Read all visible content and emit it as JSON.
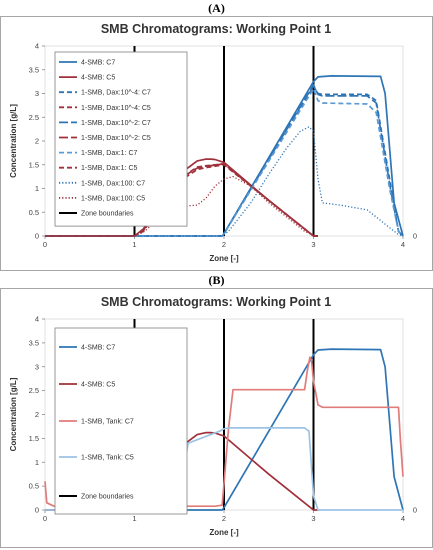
{
  "figure": {
    "label_a": "(A)",
    "label_b": "(B)"
  },
  "chart_data": [
    {
      "type": "line",
      "title": "SMB Chromatograms: Working Point 1",
      "xlabel": "Zone [-]",
      "ylabel": "Concentration [g/L]",
      "xlim": [
        0,
        4
      ],
      "ylim": [
        0,
        4
      ],
      "xticks": [
        "0",
        "1",
        "2",
        "3",
        "4"
      ],
      "yticks": [
        "0",
        "0.5",
        "1",
        "1.5",
        "2",
        "2.5",
        "3",
        "3.5",
        "4"
      ],
      "right_axis_tick": "0",
      "legend_position": "top-left",
      "zone_boundaries": [
        1,
        2,
        3
      ],
      "series": [
        {
          "name": "4-SMB: C7",
          "color": "#2e75b6",
          "style": "solid",
          "x": [
            0,
            1.98,
            2.0,
            3.0,
            3.05,
            3.2,
            3.75,
            3.8,
            3.9,
            4.0
          ],
          "y": [
            0,
            0,
            0.05,
            3.25,
            3.35,
            3.37,
            3.36,
            3.0,
            0.7,
            0
          ]
        },
        {
          "name": "4-SMB: C5",
          "color": "#a0303a",
          "style": "solid",
          "x": [
            0,
            1.0,
            1.1,
            1.3,
            1.5,
            1.7,
            1.8,
            1.85,
            1.9,
            2.0,
            2.5,
            3.0,
            3.05
          ],
          "y": [
            0,
            0,
            0.15,
            0.75,
            1.3,
            1.58,
            1.62,
            1.62,
            1.61,
            1.55,
            0.75,
            0,
            0
          ]
        },
        {
          "name": "1-SMB, Dax:10^-4: C7",
          "color": "#2e75b6",
          "style": "dashed",
          "x": [
            0,
            1.98,
            2.0,
            3.0,
            3.05,
            3.1,
            3.6,
            3.7,
            3.85,
            3.95,
            4.0
          ],
          "y": [
            0,
            0,
            0.05,
            3.15,
            3.0,
            2.98,
            2.98,
            2.85,
            1.2,
            0.1,
            0
          ]
        },
        {
          "name": "1-SMB, Dax:10^-4: C5",
          "color": "#a0303a",
          "style": "dashed",
          "x": [
            0,
            1.0,
            1.1,
            1.3,
            1.5,
            1.7,
            1.8,
            1.9,
            2.0,
            2.5,
            3.0,
            3.05
          ],
          "y": [
            0,
            0,
            0.12,
            0.7,
            1.2,
            1.45,
            1.48,
            1.5,
            1.52,
            0.75,
            0,
            0
          ]
        },
        {
          "name": "1-SMB, Dax:10^-2: C7",
          "color": "#2e75b6",
          "style": "longdash",
          "x": [
            0,
            1.98,
            2.0,
            3.0,
            3.05,
            3.1,
            3.6,
            3.7,
            3.85,
            3.95,
            4.0
          ],
          "y": [
            0,
            0,
            0.05,
            3.18,
            2.98,
            2.95,
            2.95,
            2.8,
            1.1,
            0.1,
            0
          ]
        },
        {
          "name": "1-SMB, Dax:10^-2: C5",
          "color": "#a0303a",
          "style": "longdash",
          "x": [
            0,
            1.0,
            1.1,
            1.3,
            1.5,
            1.7,
            1.8,
            1.9,
            2.0,
            2.5,
            3.0,
            3.05
          ],
          "y": [
            0,
            0,
            0.12,
            0.7,
            1.2,
            1.43,
            1.47,
            1.49,
            1.52,
            0.75,
            0,
            0
          ]
        },
        {
          "name": "1-SMB, Dax:1: C7",
          "color": "#5b9bd5",
          "style": "dashed",
          "x": [
            0,
            1.98,
            2.0,
            3.0,
            3.05,
            3.1,
            3.6,
            3.7,
            3.85,
            3.95,
            4.0
          ],
          "y": [
            0,
            0,
            0.05,
            3.1,
            2.85,
            2.8,
            2.78,
            2.6,
            1.0,
            0.1,
            0
          ]
        },
        {
          "name": "1-SMB, Dax:1: C5",
          "color": "#a0303a",
          "style": "dashed",
          "x": [
            0,
            1.0,
            1.1,
            1.3,
            1.5,
            1.7,
            1.8,
            1.9,
            2.0,
            2.5,
            3.0,
            3.05
          ],
          "y": [
            0,
            0,
            0.1,
            0.65,
            1.15,
            1.4,
            1.44,
            1.47,
            1.5,
            0.75,
            0,
            0
          ]
        },
        {
          "name": "1-SMB, Dax:100: C7",
          "color": "#2e75b6",
          "style": "dotted",
          "x": [
            0,
            1.98,
            2.05,
            2.3,
            2.5,
            2.7,
            2.85,
            2.95,
            3.0,
            3.05,
            3.1,
            3.3,
            3.6,
            3.8,
            3.95,
            4.0
          ],
          "y": [
            0,
            0,
            0.1,
            0.7,
            1.3,
            1.85,
            2.2,
            2.3,
            2.2,
            1.2,
            0.7,
            0.65,
            0.55,
            0.25,
            0.03,
            0
          ]
        },
        {
          "name": "1-SMB, Dax:100: C5",
          "color": "#a0303a",
          "style": "dotted",
          "x": [
            0,
            1.0,
            1.1,
            1.3,
            1.5,
            1.7,
            1.8,
            1.9,
            2.0,
            2.1,
            2.3,
            2.5,
            2.7,
            2.9,
            3.0,
            3.05
          ],
          "y": [
            0,
            0,
            0.08,
            0.4,
            0.62,
            0.65,
            0.8,
            1.05,
            1.2,
            1.25,
            1.05,
            0.7,
            0.4,
            0.1,
            0.02,
            0
          ]
        },
        {
          "name": "Zone boundaries",
          "color": "#000000",
          "style": "solid"
        }
      ]
    },
    {
      "type": "line",
      "title": "SMB Chromatograms: Working Point 1",
      "xlabel": "Zone [-]",
      "ylabel": "Concentration [g/L]",
      "xlim": [
        0,
        4
      ],
      "ylim": [
        0,
        4
      ],
      "xticks": [
        "0",
        "1",
        "2",
        "3",
        "4"
      ],
      "yticks": [
        "0",
        "0.5",
        "1",
        "1.5",
        "2",
        "2.5",
        "3",
        "3.5",
        "4"
      ],
      "right_axis_tick": "0",
      "legend_position": "top-left",
      "zone_boundaries": [
        1,
        2,
        3
      ],
      "series": [
        {
          "name": "4-SMB: C7",
          "color": "#2e75b6",
          "style": "solid",
          "x": [
            0,
            1.98,
            2.0,
            3.0,
            3.05,
            3.2,
            3.75,
            3.8,
            3.9,
            4.0
          ],
          "y": [
            0,
            0,
            0.05,
            3.25,
            3.35,
            3.37,
            3.36,
            3.0,
            0.7,
            0
          ]
        },
        {
          "name": "4-SMB: C5",
          "color": "#a0303a",
          "style": "solid",
          "x": [
            0,
            1.0,
            1.1,
            1.3,
            1.5,
            1.7,
            1.8,
            1.85,
            1.9,
            2.0,
            2.5,
            3.0,
            3.05
          ],
          "y": [
            0,
            0,
            0.15,
            0.75,
            1.3,
            1.58,
            1.62,
            1.62,
            1.61,
            1.55,
            0.75,
            0,
            0
          ]
        },
        {
          "name": "1-SMB, Tank: C7",
          "color": "#e07c7c",
          "style": "solid",
          "x": [
            0,
            0.02,
            0.1,
            1.9,
            1.98,
            2.05,
            2.1,
            2.9,
            2.93,
            2.96,
            2.98,
            3.0,
            3.05,
            3.1,
            3.95,
            3.97,
            4.0
          ],
          "y": [
            0.6,
            0.15,
            0.08,
            0.08,
            0.1,
            1.7,
            2.52,
            2.52,
            2.9,
            3.2,
            3.1,
            2.7,
            2.2,
            2.15,
            2.15,
            1.5,
            0.7
          ]
        },
        {
          "name": "1-SMB, Tank: C5",
          "color": "#9dc3e6",
          "style": "solid",
          "x": [
            0,
            0.95,
            1.0,
            1.05,
            1.15,
            1.2,
            1.45,
            1.55,
            1.6,
            1.95,
            2.0,
            2.05,
            2.1,
            2.9,
            2.95,
            3.0,
            3.05,
            4.0
          ],
          "y": [
            0,
            0,
            0.02,
            0.05,
            0.6,
            0.82,
            0.82,
            0.9,
            1.4,
            1.65,
            1.7,
            1.72,
            1.72,
            1.72,
            1.65,
            0.3,
            0,
            0
          ]
        },
        {
          "name": "Zone boundaries",
          "color": "#000000",
          "style": "solid"
        }
      ]
    }
  ]
}
